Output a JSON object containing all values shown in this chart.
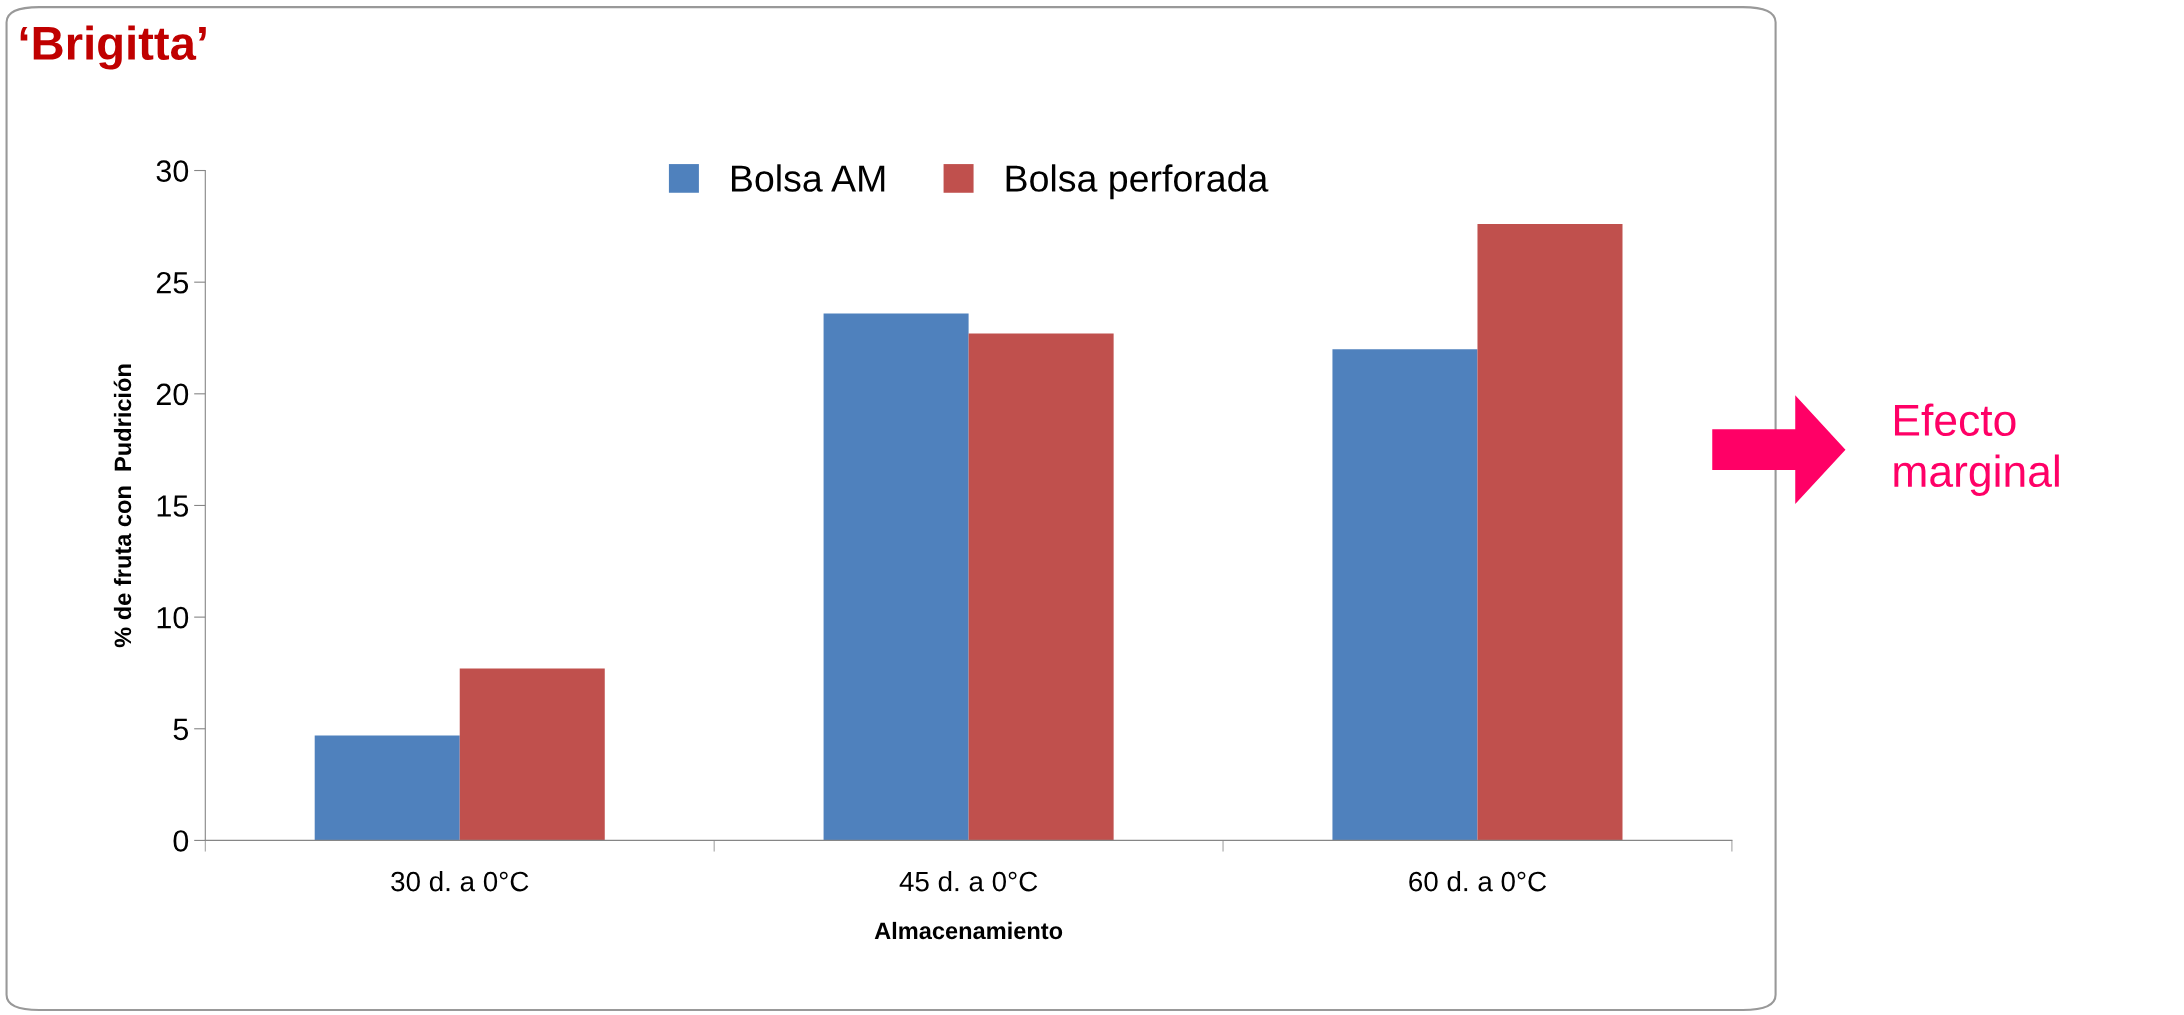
{
  "chart_data": {
    "type": "bar",
    "title": "‘Brigitta’",
    "xlabel": "Almacenamiento",
    "ylabel": "% de fruta con  Pudrición",
    "categories": [
      "30 d. a 0°C",
      "45 d. a 0°C",
      "60 d. a 0°C"
    ],
    "series": [
      {
        "name": "Bolsa AM",
        "color": "#4f81bd",
        "values": [
          4.7,
          23.6,
          22.0
        ]
      },
      {
        "name": "Bolsa perforada",
        "color": "#c0504d",
        "values": [
          7.7,
          22.7,
          27.6
        ]
      }
    ],
    "ylim": [
      0,
      30
    ],
    "yticks": [
      0,
      5,
      10,
      15,
      20,
      25,
      30
    ],
    "grid": false,
    "legend": "top",
    "annotations": [
      "Efecto\nmarginal"
    ]
  }
}
